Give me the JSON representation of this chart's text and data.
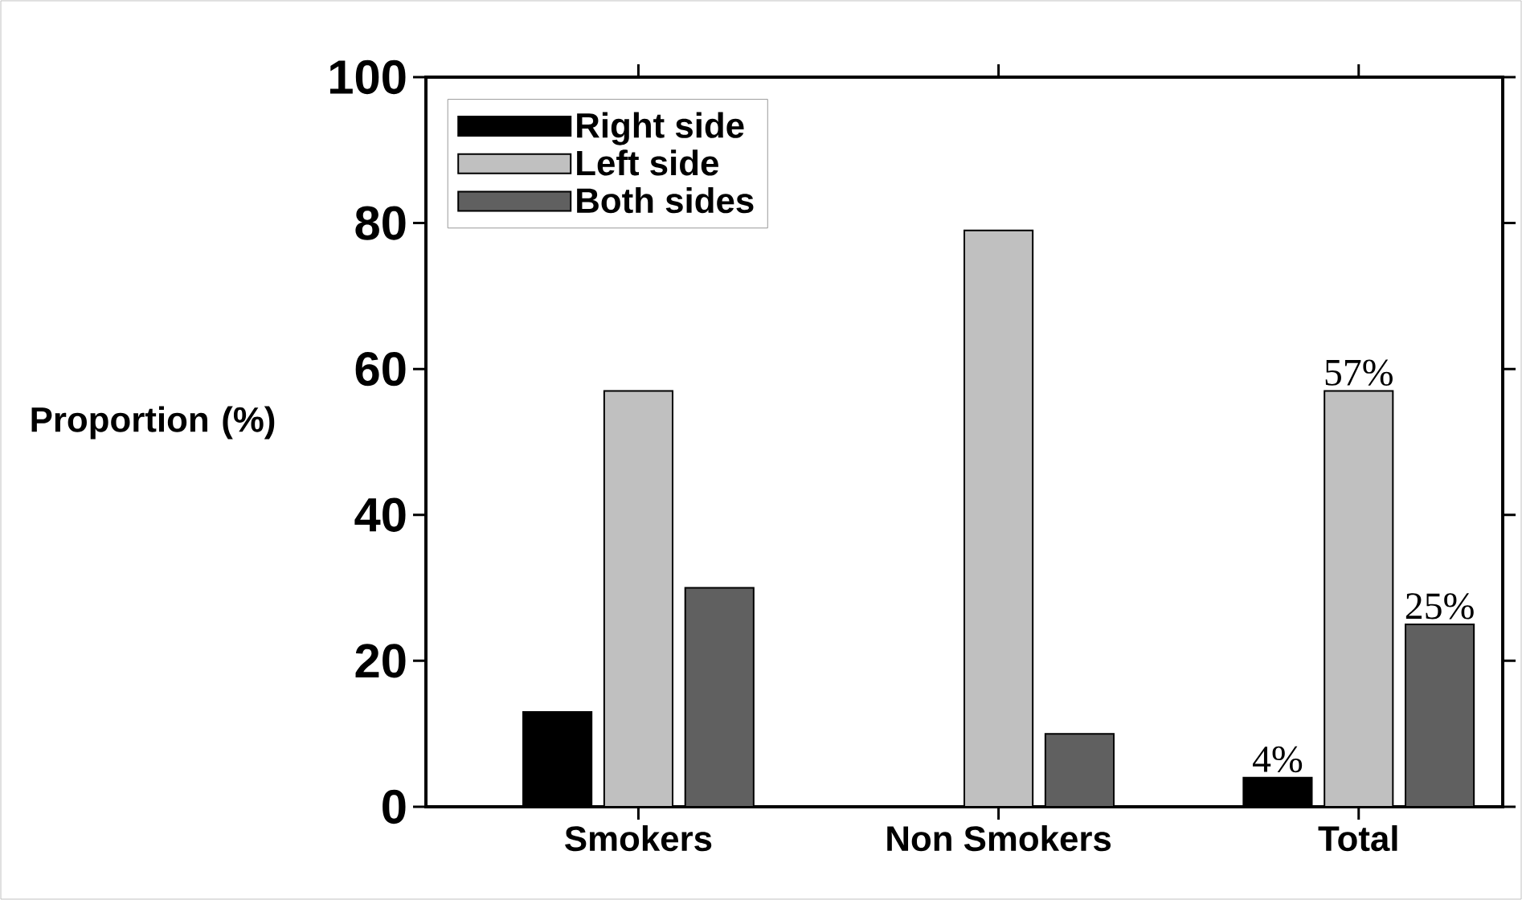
{
  "chart_data": {
    "type": "bar",
    "ylabel": "Proportion (%)",
    "categories": [
      "Smokers",
      "Non Smokers",
      "Total"
    ],
    "series": [
      {
        "name": "Right side",
        "color": "#000000",
        "values": [
          13,
          0,
          4
        ],
        "value_labels": [
          null,
          null,
          "4%"
        ]
      },
      {
        "name": "Left side",
        "color": "#c0c0c0",
        "values": [
          57,
          79,
          57
        ],
        "value_labels": [
          null,
          null,
          "57%"
        ]
      },
      {
        "name": "Both sides",
        "color": "#606060",
        "values": [
          30,
          10,
          25
        ],
        "value_labels": [
          null,
          null,
          "25%"
        ]
      }
    ],
    "ylim": [
      0,
      100
    ],
    "yticks": [
      0,
      20,
      40,
      60,
      80,
      100
    ],
    "legend": "top left"
  }
}
